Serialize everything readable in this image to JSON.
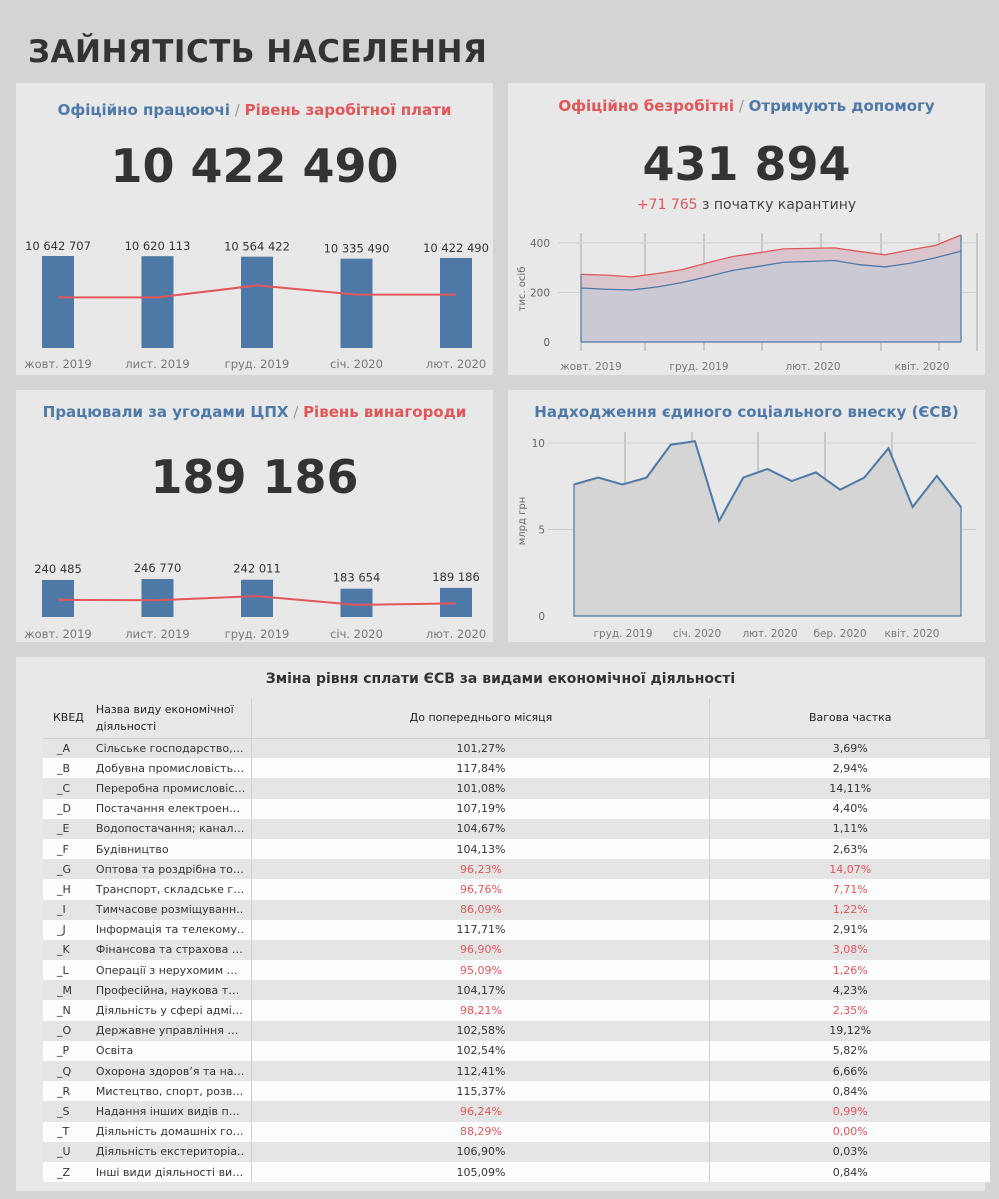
{
  "page_title": "ЗАЙНЯТІСТЬ НАСЕЛЕННЯ",
  "colors": {
    "blue": "#4e79a7",
    "red": "#e15759",
    "area_blue": "#c5cbd6",
    "area_red": "#d9c5cb"
  },
  "panel1": {
    "title_a": "Офіційно працюючі",
    "sep": " / ",
    "title_b": "Рівень заробітної плати",
    "kpi": "10 422 490"
  },
  "panel2": {
    "title_a": "Офіційно безробітні",
    "sep": " / ",
    "title_b": "Отримують допомогу",
    "kpi": "431 894",
    "delta": "+71 765",
    "delta_text": " з початку карантину"
  },
  "panel3": {
    "title_a": "Працювали за угодами ЦПХ",
    "sep": " / ",
    "title_b": "Рівень винагороди",
    "kpi": "189 186"
  },
  "panel4": {
    "title": "Надходження єдиного соціального внеску (ЄСВ)"
  },
  "table": {
    "title": "Зміна рівня сплати ЄСВ за видами економічної діяльності",
    "headers": [
      "КВЕД",
      "Назва виду економічної діяльності",
      "До попереднього місяця",
      "Вагова частка"
    ],
    "rows": [
      {
        "code": "_A",
        "name": "Сільське господарство, л..",
        "prev": "101,27%",
        "share": "3,69%",
        "neg": false
      },
      {
        "code": "_B",
        "name": "Добувна промисловість і ..",
        "prev": "117,84%",
        "share": "2,94%",
        "neg": false
      },
      {
        "code": "_C",
        "name": "Переробна промисловість",
        "prev": "101,08%",
        "share": "14,11%",
        "neg": false
      },
      {
        "code": "_D",
        "name": "Постачання електроенер..",
        "prev": "107,19%",
        "share": "4,40%",
        "neg": false
      },
      {
        "code": "_E",
        "name": "Водопостачання; каналіз..",
        "prev": "104,67%",
        "share": "1,11%",
        "neg": false
      },
      {
        "code": "_F",
        "name": "Будівництво",
        "prev": "104,13%",
        "share": "2,63%",
        "neg": false
      },
      {
        "code": "_G",
        "name": "Оптова та роздрібна тор..",
        "prev": "96,23%",
        "share": "14,07%",
        "neg": true
      },
      {
        "code": "_H",
        "name": "Транспорт, складське гос..",
        "prev": "96,76%",
        "share": "7,71%",
        "neg": true
      },
      {
        "code": "_I",
        "name": "Тимчасове розміщуванн..",
        "prev": "86,09%",
        "share": "1,22%",
        "neg": true
      },
      {
        "code": "_J",
        "name": "Інформація та телекому..",
        "prev": "117,71%",
        "share": "2,91%",
        "neg": false
      },
      {
        "code": "_K",
        "name": "Фінансова та страхова ді..",
        "prev": "96,90%",
        "share": "3,08%",
        "neg": true
      },
      {
        "code": "_L",
        "name": "Операції з нерухомим ма..",
        "prev": "95,09%",
        "share": "1,26%",
        "neg": true
      },
      {
        "code": "_M",
        "name": "Професійна, наукова та т..",
        "prev": "104,17%",
        "share": "4,23%",
        "neg": false
      },
      {
        "code": "_N",
        "name": "Діяльність у сфері адміні..",
        "prev": "98,21%",
        "share": "2,35%",
        "neg": true
      },
      {
        "code": "_O",
        "name": "Державне управління й о..",
        "prev": "102,58%",
        "share": "19,12%",
        "neg": false
      },
      {
        "code": "_P",
        "name": "Освіта",
        "prev": "102,54%",
        "share": "5,82%",
        "neg": false
      },
      {
        "code": "_Q",
        "name": "Охорона здоров’я та над..",
        "prev": "112,41%",
        "share": "6,66%",
        "neg": false
      },
      {
        "code": "_R",
        "name": "Мистецтво, спорт, розва..",
        "prev": "115,37%",
        "share": "0,84%",
        "neg": false
      },
      {
        "code": "_S",
        "name": "Надання інших видів пос..",
        "prev": "96,24%",
        "share": "0,99%",
        "neg": true
      },
      {
        "code": "_T",
        "name": "Діяльність домашніх гос..",
        "prev": "88,29%",
        "share": "0,00%",
        "neg": true
      },
      {
        "code": "_U",
        "name": "Діяльність екстериторіа..",
        "prev": "106,90%",
        "share": "0,03%",
        "neg": false
      },
      {
        "code": "_Z",
        "name": "Інші види діяльності вид ..",
        "prev": "105,09%",
        "share": "0,84%",
        "neg": false
      }
    ]
  },
  "chart_data": [
    {
      "id": "employed",
      "type": "bar",
      "categories": [
        "жовт. 2019",
        "лист. 2019",
        "груд. 2019",
        "січ. 2020",
        "лют. 2020"
      ],
      "series": [
        {
          "values": [
            10642707,
            10620113,
            10564422,
            10335490,
            10422490
          ],
          "labels": [
            "10 642 707",
            "10 620 113",
            "10 564 422",
            "10 335 490",
            "10 422 490"
          ]
        }
      ],
      "line_series": {
        "values": [
          0.55,
          0.55,
          0.68,
          0.58,
          0.58
        ]
      }
    },
    {
      "id": "unemployed",
      "type": "area",
      "ylabel": "тис. осіб",
      "ylim": [
        0,
        440
      ],
      "yticks": [
        0,
        200,
        400
      ],
      "xticks": [
        "жовт. 2019",
        "груд. 2019",
        "лют. 2020",
        "квіт. 2020"
      ],
      "series": [
        {
          "values": [
            273,
            270,
            263,
            276,
            292,
            320,
            345,
            360,
            376,
            378,
            380,
            365,
            352,
            372,
            390,
            432
          ]
        },
        {
          "values": [
            218,
            213,
            210,
            222,
            240,
            264,
            289,
            305,
            322,
            325,
            329,
            312,
            303,
            318,
            340,
            367
          ]
        }
      ]
    },
    {
      "id": "gph",
      "type": "bar",
      "categories": [
        "жовт. 2019",
        "лист. 2019",
        "груд. 2019",
        "січ. 2020",
        "лют. 2020"
      ],
      "series": [
        {
          "values": [
            240485,
            246770,
            242011,
            183654,
            189186
          ],
          "labels": [
            "240 485",
            "246 770",
            "242 011",
            "183 654",
            "189 186"
          ]
        }
      ],
      "line_series": {
        "values": [
          0.45,
          0.44,
          0.55,
          0.32,
          0.36
        ]
      }
    },
    {
      "id": "esv",
      "type": "area",
      "ylabel": "млрд грн",
      "ylim": [
        0,
        10
      ],
      "yticks": [
        0,
        5,
        10
      ],
      "xticks": [
        "груд. 2019",
        "січ. 2020",
        "лют. 2020",
        "бер. 2020",
        "квіт. 2020"
      ],
      "series": [
        {
          "values": [
            7.6,
            8.0,
            7.6,
            8.0,
            9.9,
            10.1,
            5.5,
            8.0,
            8.5,
            7.8,
            8.3,
            7.3,
            8.0,
            9.7,
            6.3,
            8.1,
            6.3
          ]
        }
      ]
    }
  ]
}
